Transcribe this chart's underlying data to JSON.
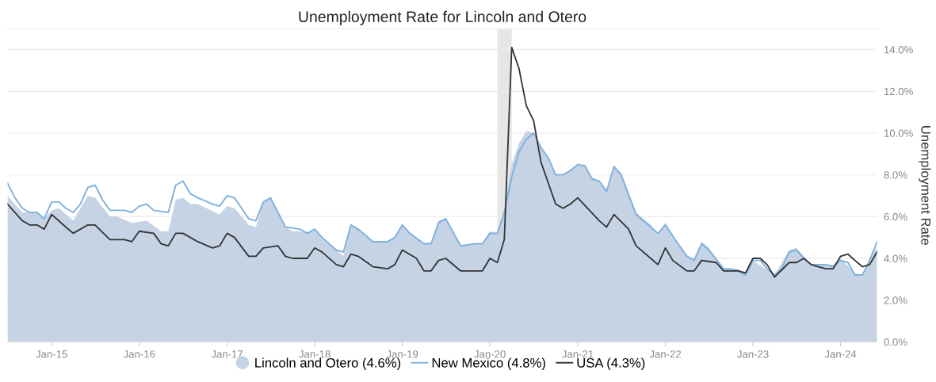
{
  "chart_data": {
    "type": "line",
    "title": "Unemployment Rate for Lincoln and Otero",
    "ylabel": "Unemployment Rate",
    "series": [
      {
        "name": "Lincoln and Otero (4.6%)",
        "type": "area",
        "color": "#c5d3e4",
        "x": [
          "2014-07",
          "2014-09",
          "2014-11",
          "2014-12",
          "2015-01",
          "2015-02",
          "2015-04",
          "2015-06",
          "2015-07",
          "2015-09",
          "2015-10",
          "2015-12",
          "2016-02",
          "2016-04",
          "2016-05",
          "2016-06",
          "2016-07",
          "2016-08",
          "2016-09",
          "2016-12",
          "2017-01",
          "2017-02",
          "2017-04",
          "2017-05",
          "2017-06",
          "2017-07",
          "2017-09",
          "2017-10",
          "2017-11",
          "2017-12",
          "2018-01",
          "2018-02",
          "2018-04",
          "2018-05",
          "2018-06",
          "2018-07",
          "2018-09",
          "2018-11",
          "2018-12",
          "2019-01",
          "2019-02",
          "2019-04",
          "2019-05",
          "2019-06",
          "2019-07",
          "2019-09",
          "2019-11",
          "2019-12",
          "2020-01",
          "2020-02",
          "2020-03",
          "2020-04",
          "2020-05",
          "2020-06",
          "2020-07",
          "2020-08",
          "2020-09",
          "2020-10",
          "2020-11",
          "2021-01",
          "2021-02",
          "2021-03",
          "2021-04",
          "2021-05",
          "2021-06",
          "2021-07",
          "2021-09",
          "2021-11",
          "2021-12",
          "2022-01",
          "2022-03",
          "2022-04",
          "2022-05",
          "2022-06",
          "2022-07",
          "2022-09",
          "2022-11",
          "2022-12",
          "2023-01",
          "2023-04",
          "2023-06",
          "2023-07",
          "2023-09",
          "2023-12",
          "2024-01",
          "2024-03",
          "2024-04",
          "2024-05",
          "2024-06"
        ],
        "values": [
          7.0,
          6.2,
          6.2,
          5.9,
          6.3,
          6.4,
          5.8,
          7.0,
          6.9,
          6.0,
          6.0,
          5.7,
          5.8,
          5.3,
          5.3,
          6.8,
          6.9,
          6.6,
          6.6,
          6.1,
          6.5,
          6.4,
          5.6,
          5.5,
          6.7,
          6.9,
          5.5,
          5.3,
          5.3,
          5.2,
          5.4,
          5.0,
          4.4,
          4.1,
          5.6,
          5.4,
          4.8,
          4.8,
          5.0,
          5.6,
          5.2,
          4.7,
          4.7,
          5.8,
          5.9,
          4.6,
          4.7,
          4.7,
          5.3,
          5.2,
          6.3,
          8.5,
          9.5,
          10.1,
          10.0,
          9.3,
          8.8,
          8.0,
          8.0,
          8.5,
          8.5,
          7.9,
          7.7,
          7.3,
          8.4,
          8.1,
          6.2,
          5.6,
          5.2,
          5.7,
          4.6,
          4.1,
          4.0,
          4.8,
          4.5,
          3.5,
          3.5,
          3.2,
          3.9,
          3.2,
          4.4,
          4.5,
          3.7,
          3.7,
          4.0,
          3.3,
          3.2,
          3.9,
          4.6
        ]
      },
      {
        "name": "New Mexico (4.8%)",
        "color": "#7fb2dd",
        "x": [
          "2014-07",
          "2014-08",
          "2014-09",
          "2014-10",
          "2014-11",
          "2014-12",
          "2015-01",
          "2015-02",
          "2015-03",
          "2015-04",
          "2015-05",
          "2015-06",
          "2015-07",
          "2015-08",
          "2015-09",
          "2015-11",
          "2015-12",
          "2016-01",
          "2016-02",
          "2016-03",
          "2016-05",
          "2016-06",
          "2016-07",
          "2016-08",
          "2016-09",
          "2016-11",
          "2016-12",
          "2017-01",
          "2017-02",
          "2017-04",
          "2017-05",
          "2017-06",
          "2017-07",
          "2017-08",
          "2017-09",
          "2017-11",
          "2017-12",
          "2018-01",
          "2018-02",
          "2018-04",
          "2018-05",
          "2018-06",
          "2018-07",
          "2018-09",
          "2018-11",
          "2018-12",
          "2019-01",
          "2019-02",
          "2019-04",
          "2019-05",
          "2019-06",
          "2019-07",
          "2019-09",
          "2019-11",
          "2019-12",
          "2020-01",
          "2020-02",
          "2020-03",
          "2020-04",
          "2020-05",
          "2020-06",
          "2020-07",
          "2020-08",
          "2020-09",
          "2020-10",
          "2020-11",
          "2020-12",
          "2021-01",
          "2021-02",
          "2021-03",
          "2021-04",
          "2021-05",
          "2021-06",
          "2021-07",
          "2021-09",
          "2021-10",
          "2021-11",
          "2021-12",
          "2022-01",
          "2022-03",
          "2022-04",
          "2022-05",
          "2022-06",
          "2022-07",
          "2022-09",
          "2022-10",
          "2022-11",
          "2022-12",
          "2023-01",
          "2023-02",
          "2023-03",
          "2023-04",
          "2023-05",
          "2023-06",
          "2023-07",
          "2023-08",
          "2023-09",
          "2023-10",
          "2023-11",
          "2023-12",
          "2024-01",
          "2024-02",
          "2024-03",
          "2024-04",
          "2024-05",
          "2024-06"
        ],
        "values": [
          7.6,
          6.9,
          6.4,
          6.2,
          6.2,
          5.9,
          6.7,
          6.7,
          6.4,
          6.2,
          6.6,
          7.4,
          7.5,
          6.8,
          6.3,
          6.3,
          6.2,
          6.5,
          6.6,
          6.3,
          6.2,
          7.5,
          7.7,
          7.1,
          6.9,
          6.6,
          6.5,
          7.0,
          6.9,
          5.9,
          5.8,
          6.7,
          6.9,
          6.2,
          5.5,
          5.4,
          5.2,
          5.4,
          5.0,
          4.4,
          4.3,
          5.6,
          5.4,
          4.8,
          4.8,
          5.0,
          5.6,
          5.2,
          4.7,
          4.7,
          5.7,
          5.9,
          4.6,
          4.7,
          4.7,
          5.2,
          5.2,
          6.2,
          7.9,
          9.1,
          9.7,
          10.0,
          9.3,
          8.8,
          8.0,
          8.0,
          8.2,
          8.5,
          8.4,
          7.8,
          7.7,
          7.2,
          8.4,
          8.0,
          6.1,
          5.8,
          5.5,
          5.2,
          5.6,
          4.6,
          4.1,
          3.9,
          4.7,
          4.4,
          3.5,
          3.5,
          3.4,
          3.2,
          3.9,
          3.9,
          3.5,
          3.2,
          3.5,
          4.3,
          4.4,
          4.0,
          3.7,
          3.7,
          3.7,
          3.6,
          3.9,
          3.8,
          3.2,
          3.2,
          3.9,
          4.8
        ]
      },
      {
        "name": "USA (4.3%)",
        "color": "#333333",
        "x": [
          "2014-07",
          "2014-09",
          "2014-10",
          "2014-11",
          "2014-12",
          "2015-01",
          "2015-03",
          "2015-04",
          "2015-06",
          "2015-07",
          "2015-09",
          "2015-11",
          "2015-12",
          "2016-01",
          "2016-03",
          "2016-04",
          "2016-05",
          "2016-06",
          "2016-07",
          "2016-09",
          "2016-11",
          "2016-12",
          "2017-01",
          "2017-02",
          "2017-04",
          "2017-05",
          "2017-06",
          "2017-08",
          "2017-09",
          "2017-10",
          "2017-12",
          "2018-01",
          "2018-02",
          "2018-04",
          "2018-05",
          "2018-06",
          "2018-07",
          "2018-09",
          "2018-11",
          "2018-12",
          "2019-01",
          "2019-03",
          "2019-04",
          "2019-05",
          "2019-06",
          "2019-07",
          "2019-09",
          "2019-12",
          "2020-01",
          "2020-02",
          "2020-03",
          "2020-04",
          "2020-05",
          "2020-06",
          "2020-07",
          "2020-08",
          "2020-10",
          "2020-11",
          "2020-12",
          "2021-01",
          "2021-04",
          "2021-05",
          "2021-06",
          "2021-08",
          "2021-09",
          "2021-11",
          "2021-12",
          "2022-01",
          "2022-02",
          "2022-04",
          "2022-05",
          "2022-06",
          "2022-08",
          "2022-09",
          "2022-11",
          "2022-12",
          "2023-01",
          "2023-02",
          "2023-03",
          "2023-04",
          "2023-06",
          "2023-07",
          "2023-08",
          "2023-09",
          "2023-10",
          "2023-11",
          "2023-12",
          "2024-01",
          "2024-02",
          "2024-03",
          "2024-04",
          "2024-05",
          "2024-06"
        ],
        "values": [
          6.6,
          5.8,
          5.6,
          5.6,
          5.4,
          6.1,
          5.5,
          5.2,
          5.6,
          5.6,
          4.9,
          4.9,
          4.8,
          5.3,
          5.2,
          4.7,
          4.6,
          5.2,
          5.2,
          4.8,
          4.5,
          4.6,
          5.2,
          5.0,
          4.1,
          4.1,
          4.5,
          4.6,
          4.1,
          4.0,
          4.0,
          4.5,
          4.3,
          3.7,
          3.6,
          4.2,
          4.1,
          3.6,
          3.5,
          3.7,
          4.4,
          4.0,
          3.4,
          3.4,
          3.9,
          4.0,
          3.4,
          3.4,
          4.0,
          3.8,
          4.9,
          14.1,
          13.1,
          11.3,
          10.6,
          8.6,
          6.6,
          6.4,
          6.6,
          6.9,
          5.8,
          5.5,
          6.1,
          5.4,
          4.6,
          4.0,
          3.7,
          4.5,
          3.9,
          3.4,
          3.4,
          3.9,
          3.8,
          3.4,
          3.4,
          3.3,
          4.0,
          4.0,
          3.7,
          3.1,
          3.8,
          3.8,
          4.0,
          3.7,
          3.6,
          3.5,
          3.5,
          4.1,
          4.2,
          3.9,
          3.6,
          3.7,
          4.3
        ]
      }
    ],
    "bands": [
      {
        "axis": "x",
        "from": "2020-02",
        "to": "2020-04",
        "color": "#e6e6e6"
      }
    ],
    "xlim": [
      "2014-07",
      "2024-06"
    ],
    "xticks": [
      {
        "value": "2015-01",
        "label": "Jan-15"
      },
      {
        "value": "2016-01",
        "label": "Jan-16"
      },
      {
        "value": "2017-01",
        "label": "Jan-17"
      },
      {
        "value": "2018-01",
        "label": "Jan-18"
      },
      {
        "value": "2019-01",
        "label": "Jan-19"
      },
      {
        "value": "2020-01",
        "label": "Jan-20"
      },
      {
        "value": "2021-01",
        "label": "Jan-21"
      },
      {
        "value": "2022-01",
        "label": "Jan-22"
      },
      {
        "value": "2023-01",
        "label": "Jan-23"
      },
      {
        "value": "2024-01",
        "label": "Jan-24"
      }
    ],
    "ylim": [
      0,
      15
    ],
    "yticks": [
      {
        "value": 0,
        "label": "0.0%"
      },
      {
        "value": 2,
        "label": "2.0%"
      },
      {
        "value": 4,
        "label": "4.0%"
      },
      {
        "value": 6,
        "label": "6.0%"
      },
      {
        "value": 8,
        "label": "8.0%"
      },
      {
        "value": 10,
        "label": "10.0%"
      },
      {
        "value": 12,
        "label": "12.0%"
      },
      {
        "value": 14,
        "label": "14.0%"
      }
    ],
    "grid": "y",
    "legend": "bottom"
  }
}
